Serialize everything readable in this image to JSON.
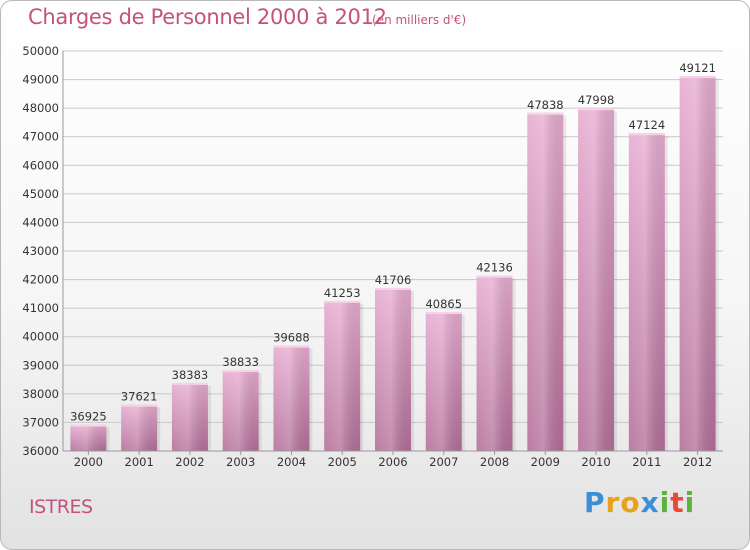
{
  "header": {
    "title": "Charges de Personnel 2000 à 2012",
    "subtitle": "(en milliers d'€)"
  },
  "footer": {
    "city": "ISTRES",
    "logo_letters": [
      "P",
      "r",
      "o",
      "x",
      "i",
      "t",
      "i"
    ],
    "logo_colors": [
      "#3b8fd6",
      "#e8a21a",
      "#e8a21a",
      "#3b8fd6",
      "#5ab33d",
      "#e84a3a",
      "#5ab33d"
    ]
  },
  "colors": {
    "bar_top": "#e7acd0",
    "bar_bottom": "#b36f99",
    "grid": "#c8c8c8",
    "axis_text": "#333333",
    "accent": "#c4527f"
  },
  "chart_data": {
    "type": "bar",
    "categories": [
      "2000",
      "2001",
      "2002",
      "2003",
      "2004",
      "2005",
      "2006",
      "2007",
      "2008",
      "2009",
      "2010",
      "2011",
      "2012"
    ],
    "values": [
      36925,
      37621,
      38383,
      38833,
      39688,
      41253,
      41706,
      40865,
      42136,
      47838,
      47998,
      47124,
      49121
    ],
    "title": "Charges de Personnel 2000 à 2012",
    "ylim": [
      36000,
      50000
    ],
    "yticks": [
      36000,
      37000,
      38000,
      39000,
      40000,
      41000,
      42000,
      43000,
      44000,
      45000,
      46000,
      47000,
      48000,
      49000,
      50000
    ],
    "grid": true
  }
}
